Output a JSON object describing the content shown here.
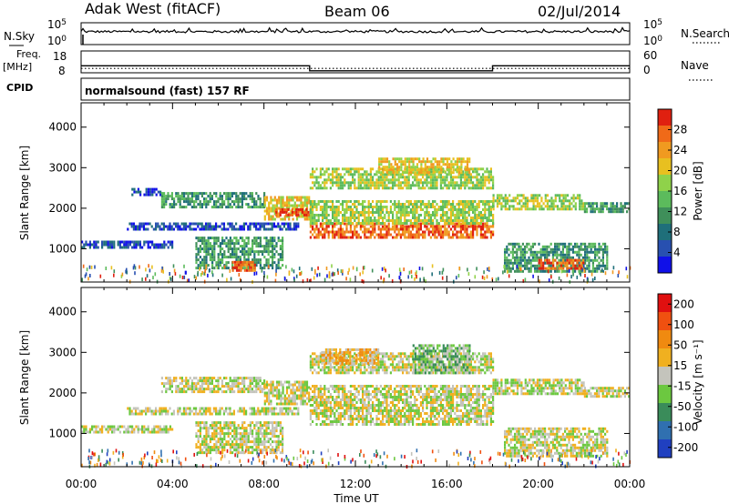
{
  "header": {
    "station": "Adak West (fitACF)",
    "beam": "Beam 06",
    "date": "02/Jul/2014"
  },
  "aux_panels": {
    "nsky": {
      "label": "N.Sky",
      "tick_top": "10^5",
      "tick_bottom": "10^0",
      "right_label": "N.Search",
      "right_tick_top": "10^5",
      "right_tick_bottom": "10^0"
    },
    "freq": {
      "label_top": "Freq.",
      "label_unit": "[MHz]",
      "tick_top": "18",
      "tick_bottom": "8",
      "right_label": "Nave",
      "right_tick_top": "60",
      "right_tick_bottom": "0",
      "freq_trace": [
        [
          0,
          11.2
        ],
        [
          10,
          11.2
        ],
        [
          10,
          8.9
        ],
        [
          18,
          8.9
        ],
        [
          18,
          11.2
        ],
        [
          24,
          11.2
        ]
      ],
      "nave_level": 12
    },
    "cpid": {
      "label": "CPID",
      "text": "normalsound (fast) 157 RF"
    }
  },
  "chart_data": [
    {
      "type": "heatmap",
      "name": "power",
      "ylabel": "Slant Range [km]",
      "xlabel": "Time UT",
      "xlim": [
        0,
        24
      ],
      "ylim": [
        180,
        4600
      ],
      "x_ticks": [
        "00:00",
        "04:00",
        "08:00",
        "12:00",
        "16:00",
        "20:00",
        "00:00"
      ],
      "y_ticks": [
        1000,
        2000,
        3000,
        4000
      ],
      "colorbar": {
        "label": "Power [dB]",
        "ticks": [
          "4",
          "8",
          "12",
          "16",
          "20",
          "24",
          "28"
        ],
        "colors": [
          "#1010e8",
          "#2850b0",
          "#1f6f7a",
          "#3f8f5a",
          "#5cbb5c",
          "#8fd24a",
          "#e8c020",
          "#f09a20",
          "#f06a18",
          "#e02010"
        ]
      },
      "echo_bands": [
        {
          "t": [
            0.0,
            4.0
          ],
          "range": [
            1050,
            1200
          ],
          "level": 1
        },
        {
          "t": [
            2.0,
            9.5
          ],
          "range": [
            1450,
            1650
          ],
          "level": 1
        },
        {
          "t": [
            2.2,
            3.5
          ],
          "range": [
            2300,
            2500
          ],
          "level": 1
        },
        {
          "t": [
            3.5,
            8.0
          ],
          "range": [
            2000,
            2400
          ],
          "level": 3
        },
        {
          "t": [
            5.0,
            8.8
          ],
          "range": [
            500,
            1300
          ],
          "level": 3
        },
        {
          "t": [
            6.6,
            7.6
          ],
          "range": [
            450,
            700
          ],
          "level": 8
        },
        {
          "t": [
            8.0,
            10.0
          ],
          "range": [
            1700,
            2300
          ],
          "level": 6
        },
        {
          "t": [
            8.5,
            10.0
          ],
          "range": [
            1800,
            2000
          ],
          "level": 9
        },
        {
          "t": [
            10.0,
            18.0
          ],
          "range": [
            1250,
            1650
          ],
          "level": 8
        },
        {
          "t": [
            10.0,
            18.0
          ],
          "range": [
            1650,
            2200
          ],
          "level": 5
        },
        {
          "t": [
            10.0,
            18.0
          ],
          "range": [
            2500,
            3000
          ],
          "level": 5
        },
        {
          "t": [
            13.0,
            17.0
          ],
          "range": [
            2850,
            3250
          ],
          "level": 6
        },
        {
          "t": [
            18.0,
            22.0
          ],
          "range": [
            2000,
            2350
          ],
          "level": 5
        },
        {
          "t": [
            18.5,
            23.0
          ],
          "range": [
            450,
            1150
          ],
          "level": 3
        },
        {
          "t": [
            20.0,
            22.0
          ],
          "range": [
            500,
            750
          ],
          "level": 8
        },
        {
          "t": [
            22.0,
            24.0
          ],
          "range": [
            1900,
            2150
          ],
          "level": 3
        }
      ]
    },
    {
      "type": "heatmap",
      "name": "velocity",
      "ylabel": "Slant Range [km]",
      "xlabel": "Time UT",
      "xlim": [
        0,
        24
      ],
      "ylim": [
        180,
        4600
      ],
      "x_ticks": [
        "00:00",
        "04:00",
        "08:00",
        "12:00",
        "16:00",
        "20:00",
        "00:00"
      ],
      "y_ticks": [
        1000,
        2000,
        3000,
        4000
      ],
      "colorbar": {
        "label": "Velocity [m s⁻¹]",
        "ticks": [
          "200",
          "100",
          "50",
          "15",
          "-15",
          "-50",
          "-100",
          "-200"
        ],
        "colors": [
          "#2040c0",
          "#3070b0",
          "#3a8c5a",
          "#6cc840",
          "#c4c4bc",
          "#f0b020",
          "#f08a10",
          "#f05010",
          "#e01010"
        ]
      },
      "echo_bands": [
        {
          "t": [
            0.0,
            4.0
          ],
          "range": [
            1050,
            1200
          ],
          "level": 4
        },
        {
          "t": [
            2.0,
            9.5
          ],
          "range": [
            1450,
            1650
          ],
          "level": 4
        },
        {
          "t": [
            3.5,
            8.0
          ],
          "range": [
            2000,
            2400
          ],
          "level": 4
        },
        {
          "t": [
            5.0,
            8.8
          ],
          "range": [
            500,
            1300
          ],
          "level": 4
        },
        {
          "t": [
            8.0,
            10.0
          ],
          "range": [
            1700,
            2300
          ],
          "level": 4
        },
        {
          "t": [
            10.0,
            18.0
          ],
          "range": [
            1250,
            2200
          ],
          "level": 4
        },
        {
          "t": [
            10.0,
            18.0
          ],
          "range": [
            2500,
            3000
          ],
          "level": 4
        },
        {
          "t": [
            14.5,
            17.0
          ],
          "range": [
            2500,
            3200
          ],
          "level": 3
        },
        {
          "t": [
            10.5,
            13.0
          ],
          "range": [
            2700,
            3100
          ],
          "level": 5
        },
        {
          "t": [
            18.0,
            22.0
          ],
          "range": [
            2000,
            2350
          ],
          "level": 4
        },
        {
          "t": [
            18.5,
            23.0
          ],
          "range": [
            450,
            1150
          ],
          "level": 4
        },
        {
          "t": [
            22.0,
            24.0
          ],
          "range": [
            1900,
            2150
          ],
          "level": 4
        }
      ]
    }
  ]
}
